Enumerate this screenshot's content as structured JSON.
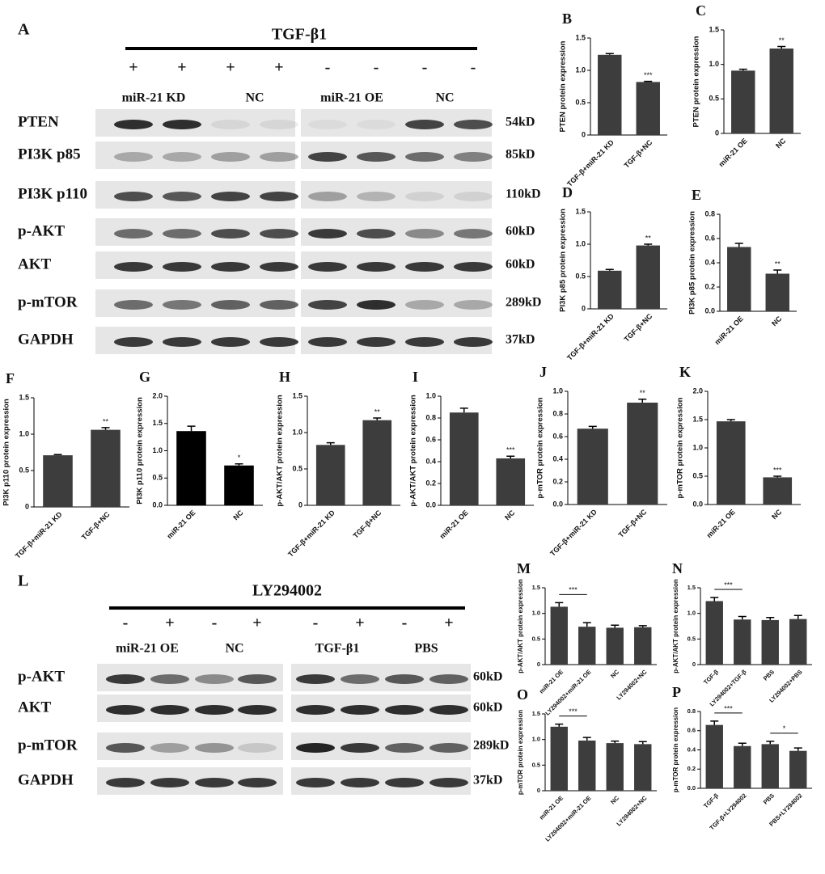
{
  "blots": [
    {
      "panel": "A",
      "treatment": "TGF-β1",
      "signs": [
        "+",
        "+",
        "+",
        "+",
        "-",
        "-",
        "-",
        "-"
      ],
      "groups": [
        "miR-21 KD",
        "NC",
        "miR-21 OE",
        "NC"
      ],
      "rows": [
        {
          "protein": "PTEN",
          "size": "54kD"
        },
        {
          "protein": "PI3K p85",
          "size": "85kD"
        },
        {
          "protein": "PI3K p110",
          "size": "110kD"
        },
        {
          "protein": "p-AKT",
          "size": "60kD"
        },
        {
          "protein": "AKT",
          "size": "60kD"
        },
        {
          "protein": "p-mTOR",
          "size": "289kD"
        },
        {
          "protein": "GAPDH",
          "size": "37kD"
        }
      ]
    },
    {
      "panel": "L",
      "treatment": "LY294002",
      "signs": [
        "-",
        "+",
        "-",
        "+",
        "-",
        "+",
        "-",
        "+"
      ],
      "groups": [
        "miR-21 OE",
        "NC",
        "TGF-β1",
        "PBS"
      ],
      "rows": [
        {
          "protein": "p-AKT",
          "size": "60kD"
        },
        {
          "protein": "AKT",
          "size": "60kD"
        },
        {
          "protein": "p-mTOR",
          "size": "289kD"
        },
        {
          "protein": "GAPDH",
          "size": "37kD"
        }
      ]
    }
  ],
  "chart_data": [
    {
      "type": "bar",
      "panel": "B",
      "ylabel": "PTEN protein expression",
      "categories": [
        "TGF-β+miR-21 KD",
        "TGF-β+NC"
      ],
      "values": [
        1.24,
        0.82
      ],
      "errors": [
        0.02,
        0.01
      ],
      "significance": [
        null,
        "***"
      ],
      "significance_style": "above",
      "color": "#3d3d3d",
      "ylim": [
        0,
        1.5
      ],
      "yticks": [
        0,
        0.5,
        {
          "value": 1,
          "label": "1.0"
        },
        1.5
      ]
    },
    {
      "type": "bar",
      "panel": "C",
      "ylabel": "PTEN protein expression",
      "categories": [
        "miR-21 OE",
        "NC"
      ],
      "values": [
        0.91,
        1.23
      ],
      "errors": [
        0.02,
        0.03
      ],
      "significance": [
        null,
        "**"
      ],
      "significance_style": "above",
      "color": "#3d3d3d",
      "ylim": [
        0,
        1.5
      ],
      "yticks": [
        0,
        0.5,
        {
          "value": 1,
          "label": "1.0"
        },
        1.5
      ]
    },
    {
      "type": "bar",
      "panel": "D",
      "ylabel": "PI3K p85 protein expression",
      "categories": [
        "TGF-β+miR-21 KD",
        "TGF-β+NC"
      ],
      "values": [
        0.59,
        0.98
      ],
      "errors": [
        0.02,
        0.02
      ],
      "significance": [
        null,
        "**"
      ],
      "significance_style": "above",
      "color": "#3d3d3d",
      "ylim": [
        0,
        1.5
      ],
      "yticks": [
        0,
        0.5,
        {
          "value": 1,
          "label": "1.0"
        },
        1.5
      ]
    },
    {
      "type": "bar",
      "panel": "E",
      "ylabel": "PI3K p85 protein expression",
      "categories": [
        "miR-21 OE",
        "NC"
      ],
      "values": [
        0.53,
        0.31
      ],
      "errors": [
        0.03,
        0.03
      ],
      "significance": [
        null,
        "**"
      ],
      "significance_style": "above",
      "color": "#3d3d3d",
      "ylim": [
        0,
        0.8
      ],
      "yticks": [
        {
          "value": 0,
          "label": "0.0"
        },
        0.2,
        0.4,
        0.6,
        0.8
      ]
    },
    {
      "type": "bar",
      "panel": "F",
      "ylabel": "PI3K p110 protein expression",
      "categories": [
        "TGF-β+miR-21 KD",
        "TGF-β+NC"
      ],
      "values": [
        0.71,
        1.06
      ],
      "errors": [
        0.01,
        0.03
      ],
      "significance": [
        null,
        "**"
      ],
      "significance_style": "above",
      "color": "#3d3d3d",
      "ylim": [
        0,
        1.5
      ],
      "yticks": [
        0,
        0.5,
        {
          "value": 1,
          "label": "1.0"
        },
        1.5
      ]
    },
    {
      "type": "bar",
      "panel": "G",
      "ylabel": "PI3K p110 protein expression",
      "categories": [
        "miR-21 OE",
        "NC"
      ],
      "values": [
        1.36,
        0.73
      ],
      "errors": [
        0.09,
        0.03
      ],
      "significance": [
        null,
        "*"
      ],
      "significance_style": "above",
      "color": "#000000",
      "ylim": [
        0,
        2
      ],
      "yticks": [
        {
          "value": 0,
          "label": "0.0"
        },
        0.5,
        {
          "value": 1,
          "label": "1.0"
        },
        1.5,
        {
          "value": 2,
          "label": "2.0"
        }
      ]
    },
    {
      "type": "bar",
      "panel": "H",
      "ylabel": "p-AKT/AKT protein expression",
      "categories": [
        "TGF-β+miR-21 KD",
        "TGF-β+NC"
      ],
      "values": [
        0.83,
        1.17
      ],
      "errors": [
        0.03,
        0.03
      ],
      "significance": [
        null,
        "**"
      ],
      "significance_style": "above",
      "color": "#3d3d3d",
      "ylim": [
        0,
        1.5
      ],
      "yticks": [
        0,
        0.5,
        {
          "value": 1,
          "label": "1.0"
        },
        1.5
      ]
    },
    {
      "type": "bar",
      "panel": "I",
      "ylabel": "p-AKT/AKT protein expression",
      "categories": [
        "miR-21 OE",
        "NC"
      ],
      "values": [
        0.85,
        0.43
      ],
      "errors": [
        0.04,
        0.02
      ],
      "significance": [
        null,
        "***"
      ],
      "significance_style": "above",
      "color": "#3d3d3d",
      "ylim": [
        0,
        1
      ],
      "yticks": [
        {
          "value": 0,
          "label": "0.0"
        },
        0.2,
        0.4,
        0.6,
        0.8,
        {
          "value": 1,
          "label": "1.0"
        }
      ]
    },
    {
      "type": "bar",
      "panel": "J",
      "ylabel": "p-mTOR protein expression",
      "categories": [
        "TGF-β+miR-21 KD",
        "TGF-β+NC"
      ],
      "values": [
        0.67,
        0.9
      ],
      "errors": [
        0.02,
        0.03
      ],
      "significance": [
        null,
        "**"
      ],
      "significance_style": "above",
      "color": "#3d3d3d",
      "ylim": [
        0,
        1
      ],
      "yticks": [
        {
          "value": 0,
          "label": "0.0"
        },
        0.2,
        0.4,
        0.6,
        0.8,
        {
          "value": 1,
          "label": "1.0"
        }
      ]
    },
    {
      "type": "bar",
      "panel": "K",
      "ylabel": "p-mTOR protein expression",
      "categories": [
        "miR-21 OE",
        "NC"
      ],
      "values": [
        1.47,
        0.48
      ],
      "errors": [
        0.03,
        0.02
      ],
      "significance": [
        null,
        "***"
      ],
      "significance_style": "above",
      "color": "#3d3d3d",
      "ylim": [
        0,
        2
      ],
      "yticks": [
        {
          "value": 0,
          "label": "0.0"
        },
        0.5,
        {
          "value": 1,
          "label": "1.0"
        },
        1.5,
        {
          "value": 2,
          "label": "2.0"
        }
      ]
    },
    {
      "type": "bar",
      "panel": "M",
      "ylabel": "p-AKT/AKT protein expression",
      "categories": [
        "miR-21 OE",
        "LY294002+miR-21 OE",
        "NC",
        "LY294002+NC"
      ],
      "values": [
        1.13,
        0.74,
        0.72,
        0.73
      ],
      "errors": [
        0.08,
        0.08,
        0.05,
        0.03
      ],
      "significance": [
        "***",
        null,
        null,
        null
      ],
      "significance_style": "bracket",
      "color": "#3d3d3d",
      "ylim": [
        0,
        1.5
      ],
      "yticks": [
        0,
        0.5,
        {
          "value": 1,
          "label": "1.0"
        },
        1.5
      ]
    },
    {
      "type": "bar",
      "panel": "N",
      "ylabel": "p-AKT/AKT protein expression",
      "categories": [
        "TGF-β",
        "LY294002+TGF-β",
        "PBS",
        "LY294002+PBS"
      ],
      "values": [
        1.24,
        0.88,
        0.87,
        0.89
      ],
      "errors": [
        0.07,
        0.06,
        0.05,
        0.07
      ],
      "significance": [
        "***",
        null,
        null,
        null
      ],
      "significance_style": "bracket",
      "color": "#3d3d3d",
      "ylim": [
        0,
        1.5
      ],
      "yticks": [
        0,
        0.5,
        {
          "value": 1,
          "label": "1.0"
        },
        1.5
      ]
    },
    {
      "type": "bar",
      "panel": "O",
      "ylabel": "p-mTOR protein expression",
      "categories": [
        "miR-21 OE",
        "LY294002+miR-21 OE",
        "NC",
        "LY294002+NC"
      ],
      "values": [
        1.25,
        0.98,
        0.93,
        0.91
      ],
      "errors": [
        0.05,
        0.06,
        0.04,
        0.05
      ],
      "significance": [
        "***",
        null,
        null,
        null
      ],
      "significance_style": "bracket",
      "color": "#3d3d3d",
      "ylim": [
        0,
        1.5
      ],
      "yticks": [
        0,
        0.5,
        {
          "value": 1,
          "label": "1.0"
        },
        1.5
      ]
    },
    {
      "type": "bar",
      "panel": "P",
      "ylabel": "p-mTOR protein expression",
      "categories": [
        "TGF-β",
        "TGF-β+LY294002",
        "PBS",
        "PBS+LY294002"
      ],
      "values": [
        0.66,
        0.44,
        0.46,
        0.39
      ],
      "errors": [
        0.04,
        0.03,
        0.03,
        0.03
      ],
      "significance": [
        "***",
        null,
        "*",
        null
      ],
      "significance_style": "bracket",
      "color": "#3d3d3d",
      "ylim": [
        0,
        0.8
      ],
      "yticks": [
        {
          "value": 0,
          "label": "0.0"
        },
        0.2,
        0.4,
        0.6,
        0.8
      ]
    }
  ]
}
